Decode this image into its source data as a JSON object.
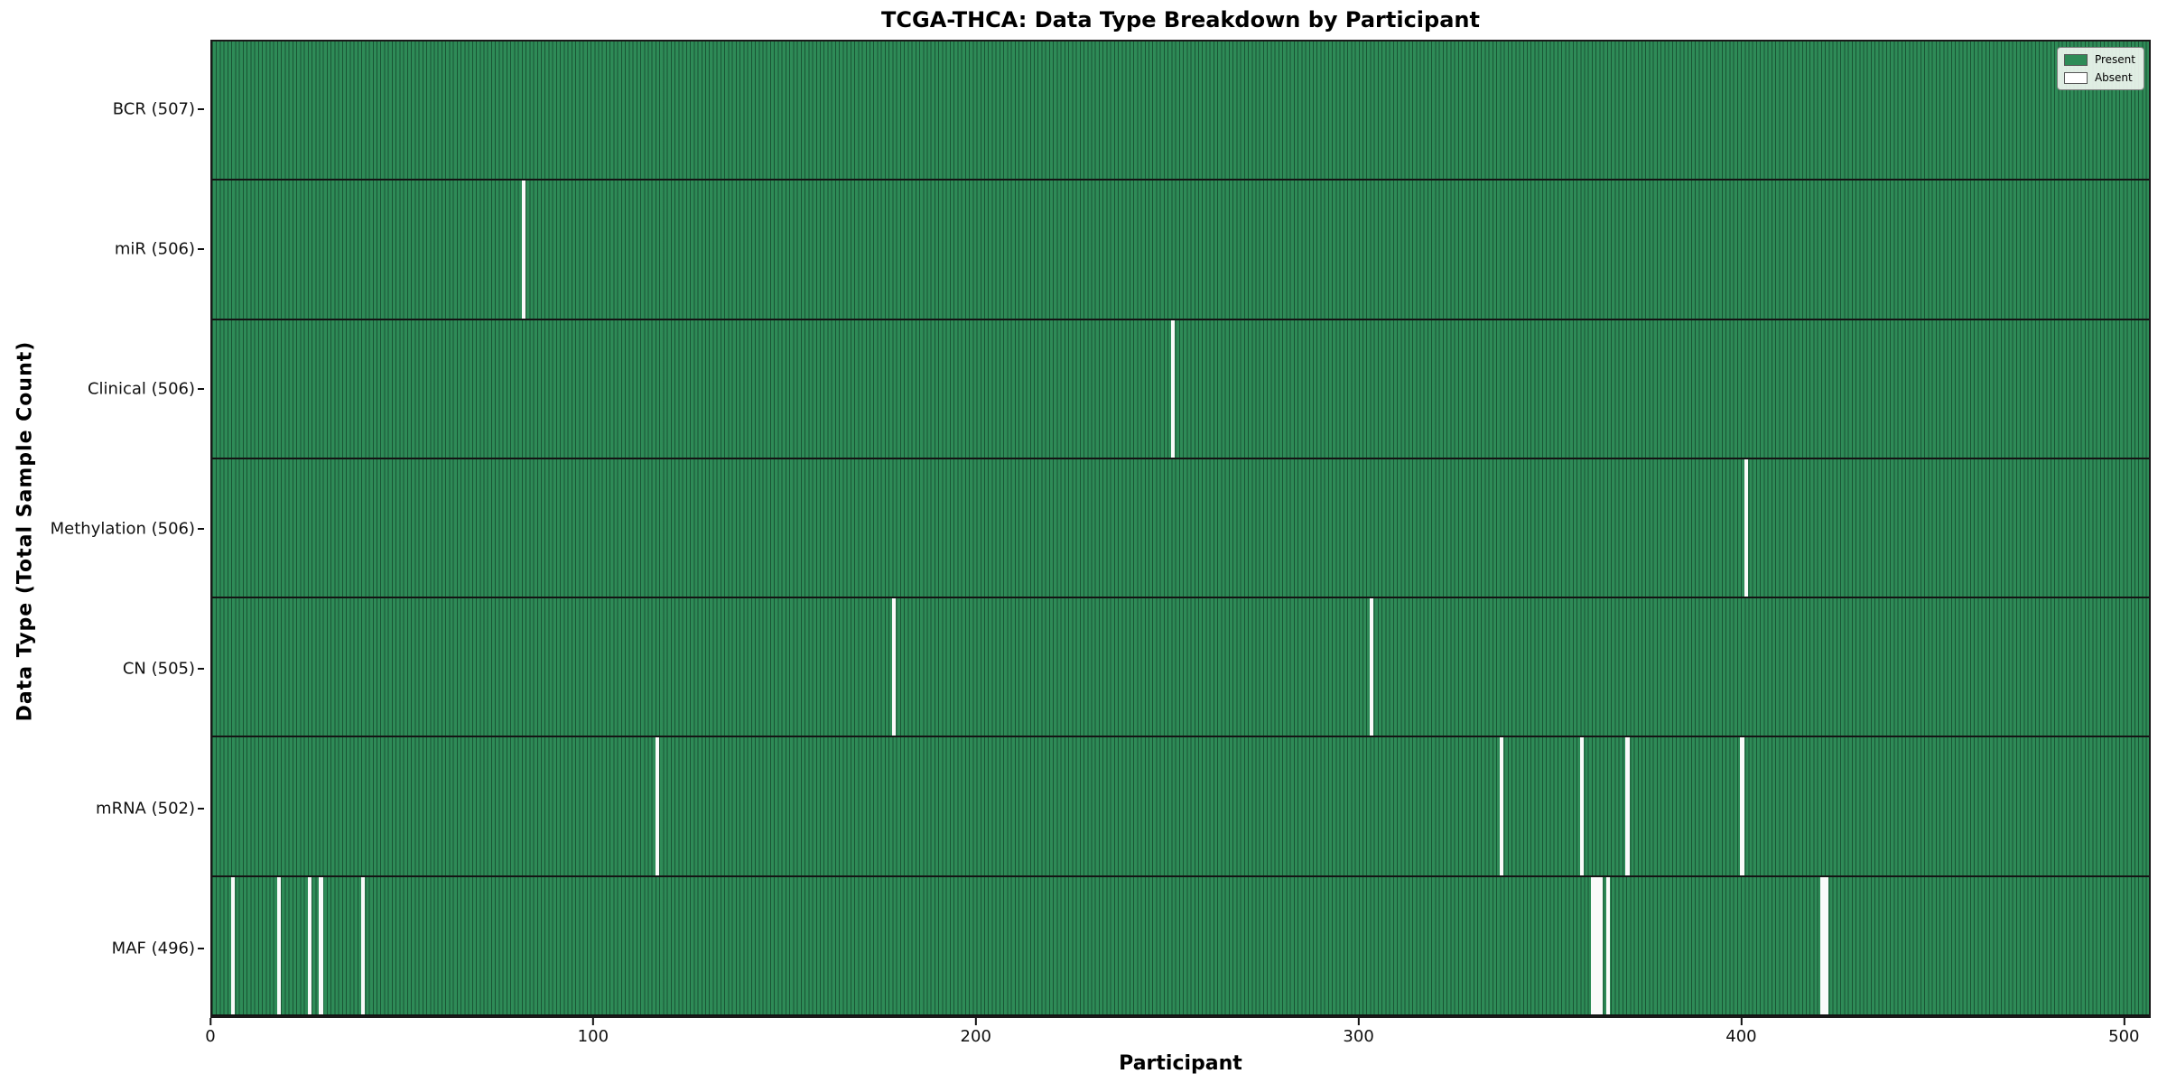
{
  "title": "TCGA-THCA: Data Type Breakdown by Participant",
  "axes": {
    "xlabel": "Participant",
    "ylabel": "Data Type (Total Sample Count)"
  },
  "legend": {
    "items": [
      {
        "name": "present",
        "label": "Present",
        "color": "#2e8b57"
      },
      {
        "name": "absent",
        "label": "Absent",
        "color": "#ffffff"
      }
    ]
  },
  "colors": {
    "present": "#2e8b57",
    "absent": "#fafafa",
    "cell_edge": "#0a2618",
    "row_separator": "#141414",
    "axes_border": "#1a1a1a",
    "legend_bg": "#f3f8f3",
    "legend_border": "#808080"
  },
  "chart_data": {
    "type": "heatmap",
    "title": "TCGA-THCA: Data Type Breakdown by Participant",
    "xlabel": "Participant",
    "ylabel": "Data Type (Total Sample Count)",
    "n_participants": 507,
    "x_ticks": [
      0,
      100,
      200,
      300,
      400,
      500
    ],
    "xlim": [
      0,
      507
    ],
    "grid": false,
    "legend_position": "upper right",
    "legend_entries": [
      "Present",
      "Absent"
    ],
    "rows": [
      {
        "label": "BCR (507)",
        "data_type": "BCR",
        "present_count": 507,
        "absent_participants": []
      },
      {
        "label": "miR (506)",
        "data_type": "miR",
        "present_count": 506,
        "absent_participants": [
          81
        ]
      },
      {
        "label": "Clinical (506)",
        "data_type": "Clinical",
        "present_count": 506,
        "absent_participants": [
          251
        ]
      },
      {
        "label": "Methylation (506)",
        "data_type": "Methylation",
        "present_count": 506,
        "absent_participants": [
          401
        ]
      },
      {
        "label": "CN (505)",
        "data_type": "CN",
        "present_count": 505,
        "absent_participants": [
          178,
          303
        ]
      },
      {
        "label": "mRNA (502)",
        "data_type": "mRNA",
        "present_count": 502,
        "absent_participants": [
          116,
          337,
          358,
          370,
          400
        ]
      },
      {
        "label": "MAF (496)",
        "data_type": "MAF",
        "present_count": 496,
        "absent_participants": [
          5,
          17,
          25,
          28,
          39,
          361,
          362,
          363,
          365,
          421,
          422
        ]
      }
    ]
  }
}
